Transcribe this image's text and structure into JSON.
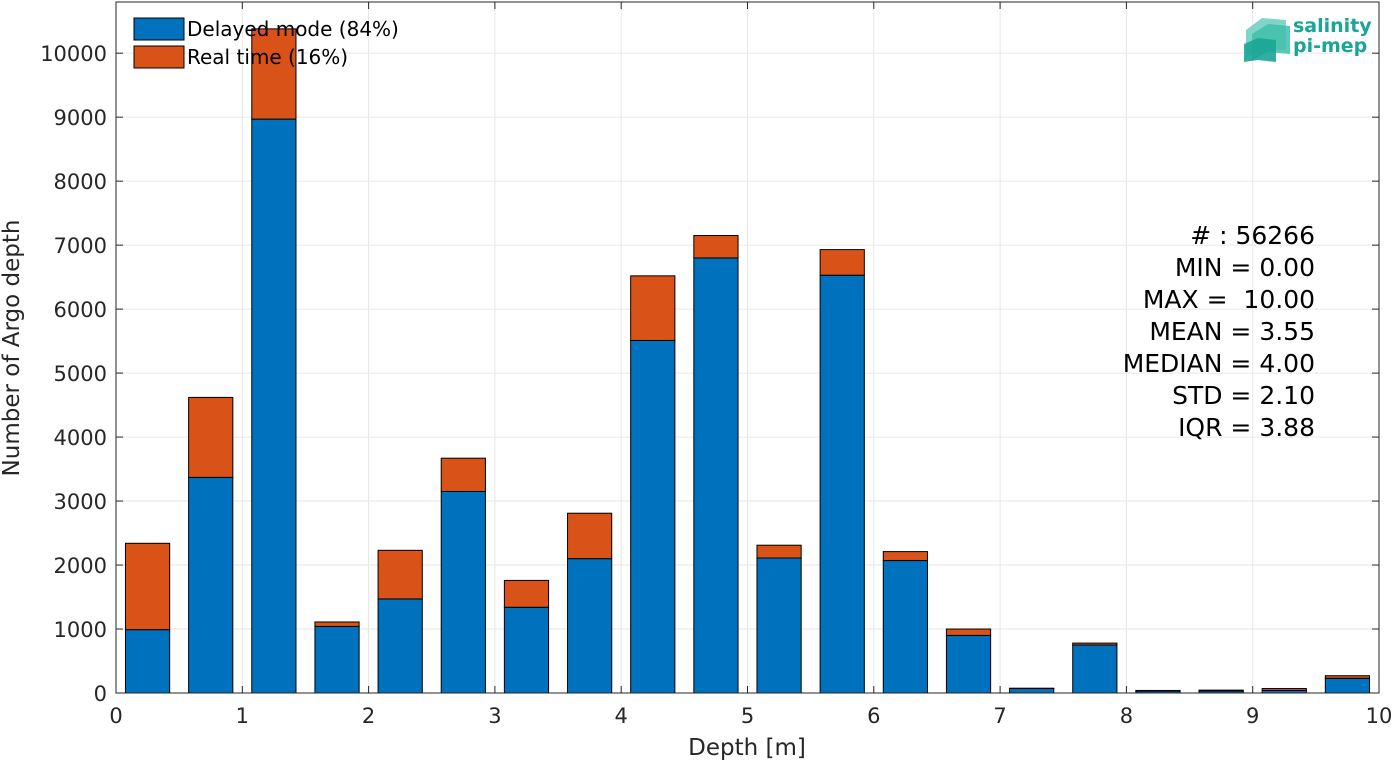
{
  "chart_data": {
    "type": "bar",
    "stacked": true,
    "bin_width": 0.5,
    "bins": [
      0,
      0.5,
      1,
      1.5,
      2,
      2.5,
      3,
      3.5,
      4,
      4.5,
      5,
      5.5,
      6,
      6.5,
      7,
      7.5,
      8,
      8.5,
      9,
      9.5
    ],
    "series": [
      {
        "name": "Delayed mode (84%)",
        "color": "#0072bd",
        "values": [
          990,
          3370,
          8970,
          1040,
          1470,
          3150,
          1340,
          2100,
          5510,
          6800,
          2110,
          6530,
          2070,
          900,
          70,
          750,
          30,
          30,
          40,
          230
        ]
      },
      {
        "name": "Real time (16%)",
        "color": "#d95319",
        "values": [
          1350,
          1250,
          1410,
          70,
          760,
          520,
          420,
          710,
          1010,
          350,
          200,
          400,
          140,
          100,
          5,
          30,
          10,
          15,
          30,
          40
        ]
      }
    ],
    "xlabel": "Depth [m]",
    "ylabel": "Number of Argo depth",
    "xlim": [
      0,
      10
    ],
    "ylim": [
      0,
      10800
    ],
    "xticks": [
      0,
      1,
      2,
      3,
      4,
      5,
      6,
      7,
      8,
      9,
      10
    ],
    "yticks": [
      0,
      1000,
      2000,
      3000,
      4000,
      5000,
      6000,
      7000,
      8000,
      9000,
      10000
    ],
    "grid": true,
    "legend_position": "top-left"
  },
  "stats": {
    "count": "# : 56266",
    "min": "MIN = 0.00",
    "max": "MAX =  10.00",
    "mean": "MEAN = 3.55",
    "median": "MEDIAN = 4.00",
    "std": "STD = 2.10",
    "iqr": "IQR = 3.88"
  },
  "logo": {
    "line1": "salinity",
    "line2": "pi-mep"
  }
}
